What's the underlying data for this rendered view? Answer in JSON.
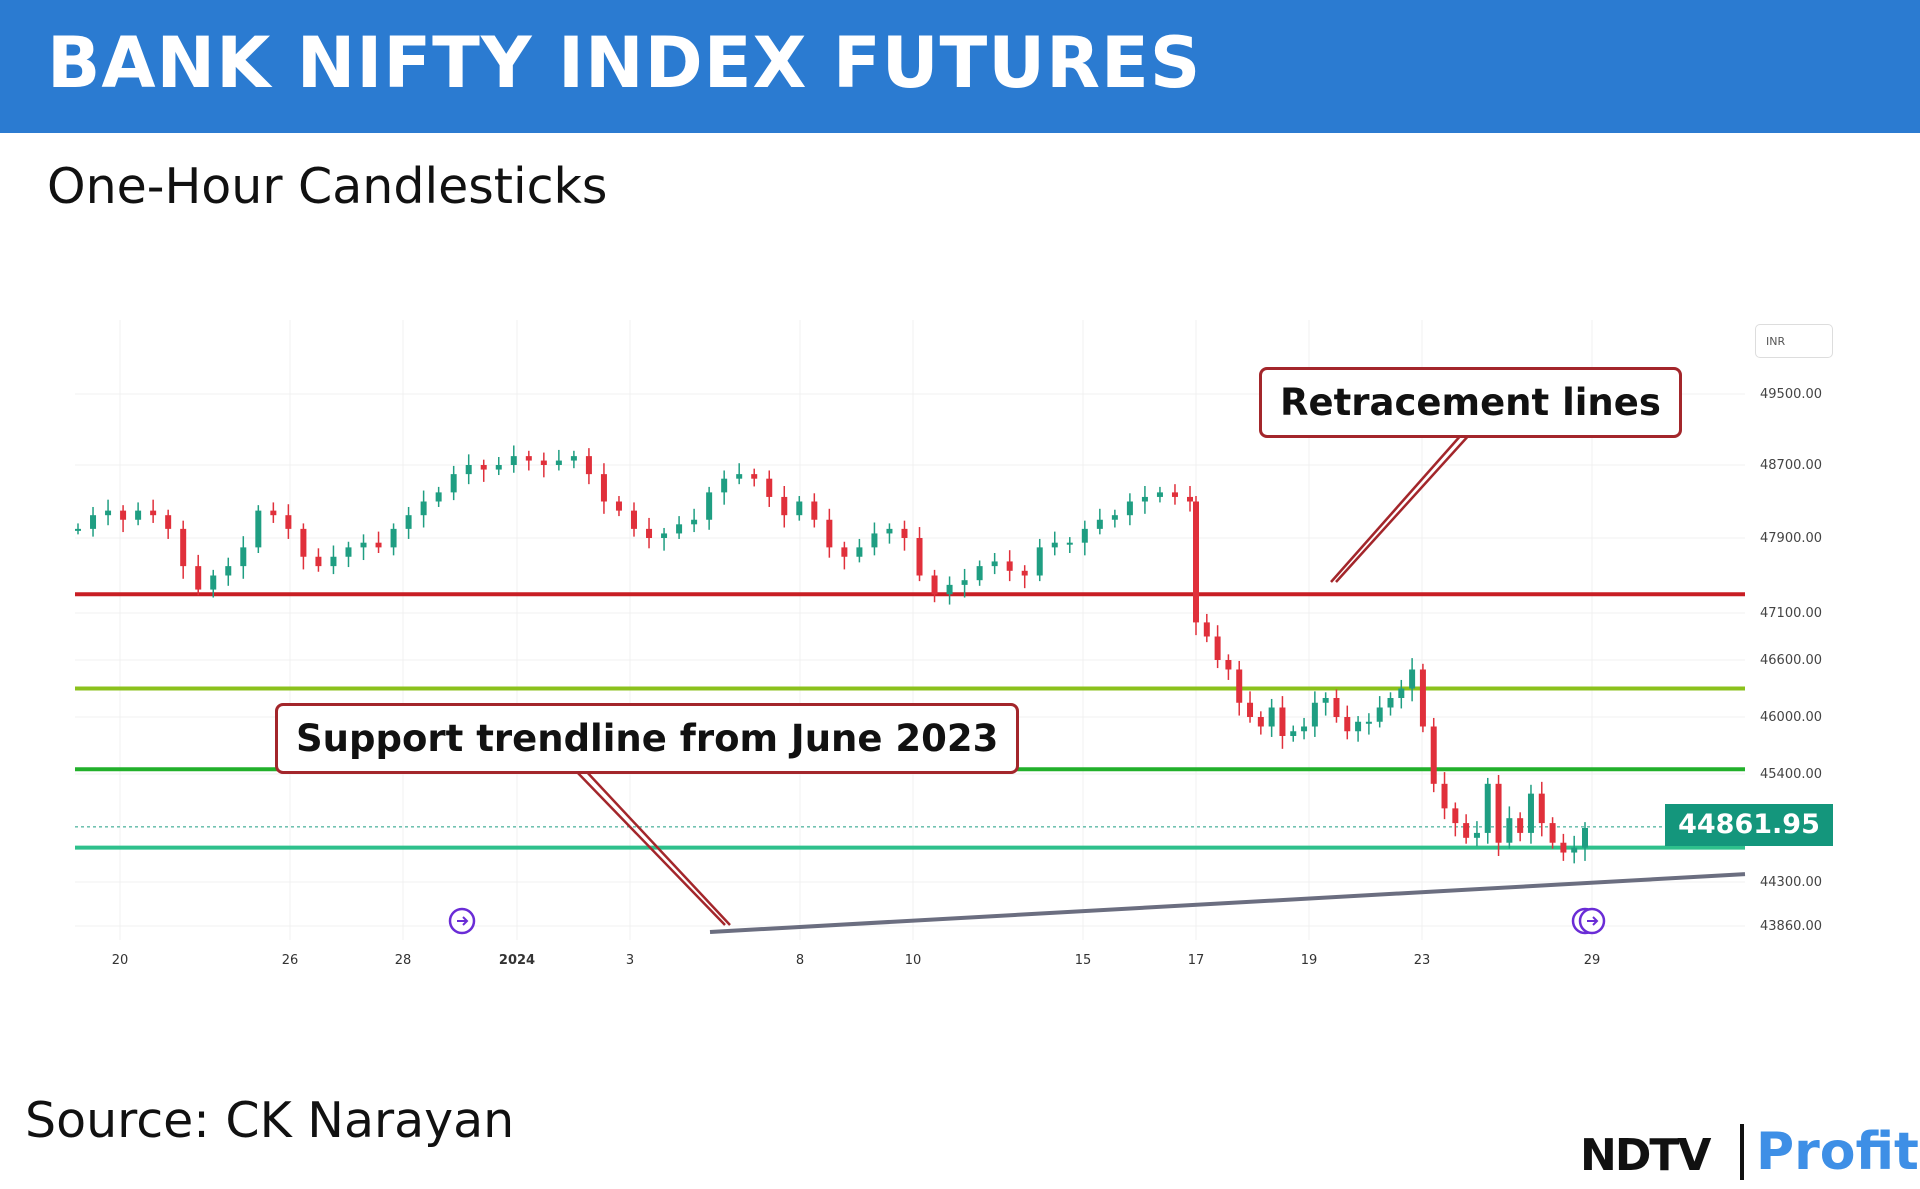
{
  "header": {
    "title": "BANK NIFTY INDEX FUTURES"
  },
  "subtitle": "One-Hour Candlesticks",
  "source": "Source: CK Narayan",
  "brand": {
    "ndtv": "NDTV",
    "profit": "Profit"
  },
  "currency_label": "INR",
  "callouts": {
    "retracement": "Retracement lines",
    "support": "Support trendline from June 2023"
  },
  "last_price": "44861.95",
  "colors": {
    "header_bg": "#2b7bd1",
    "bull": "#1f9e82",
    "bear": "#e0303b",
    "retracement_red": "#c81e24",
    "retracement_yellowgreen": "#8bc11c",
    "retracement_green": "#22b02b",
    "retracement_teal": "#2ec08c",
    "trendline": "#6b6e80",
    "callout_border": "#a3262b",
    "price_tag": "#14967c",
    "brand_profit": "#3e8fe6"
  },
  "chart_data": {
    "type": "candlestick",
    "title": "BANK NIFTY INDEX FUTURES",
    "subtitle": "One-Hour Candlesticks",
    "x_tick_labels": [
      "20",
      "26",
      "28",
      "2024",
      "3",
      "8",
      "10",
      "15",
      "17",
      "19",
      "23",
      "29"
    ],
    "y_tick_labels": [
      "49500.00",
      "48700.00",
      "47900.00",
      "47100.00",
      "46600.00",
      "46000.00",
      "45400.00",
      "44300.00",
      "43860.00"
    ],
    "ylim": [
      43700,
      49900
    ],
    "horizontal_lines": [
      {
        "name": "Retracement lines",
        "value": 47300,
        "color": "#c81e24"
      },
      {
        "name": "Retracement lines",
        "value": 46300,
        "color": "#8bc11c"
      },
      {
        "name": "Retracement lines",
        "value": 45450,
        "color": "#22b02b"
      },
      {
        "name": "Retracement lines",
        "value": 44650,
        "color": "#2ec08c"
      }
    ],
    "trendline": {
      "label": "Support trendline from June 2023",
      "from_value": 43800,
      "to_value": 44380
    },
    "last_price": 44861.95,
    "close_path": [
      48000,
      48150,
      48200,
      48100,
      48200,
      48150,
      48000,
      47600,
      47350,
      47500,
      47600,
      47800,
      48200,
      48150,
      48000,
      47700,
      47600,
      47700,
      47800,
      47850,
      47800,
      48000,
      48150,
      48300,
      48400,
      48600,
      48700,
      48650,
      48700,
      48800,
      48750,
      48700,
      48750,
      48800,
      48600,
      48300,
      48200,
      48000,
      47900,
      47950,
      48050,
      48100,
      48400,
      48550,
      48600,
      48550,
      48350,
      48150,
      48300,
      48100,
      47800,
      47700,
      47800,
      47950,
      48000,
      47900,
      47500,
      47300,
      47400,
      47450,
      47600,
      47650,
      47550,
      47500,
      47800,
      47850,
      47850,
      48000,
      48100,
      48150,
      48300,
      48350,
      48400,
      48350,
      48300,
      47000,
      46850,
      46600,
      46500,
      46150,
      46000,
      45900,
      46100,
      45800,
      45850,
      45900,
      46150,
      46200,
      46000,
      45850,
      45950,
      45950,
      46100,
      46200,
      46300,
      46500,
      45900,
      45300,
      45050,
      44900,
      44750,
      44800,
      45300,
      44700,
      44950,
      44800,
      45200,
      44900,
      44700,
      44600,
      44650,
      44850
    ]
  }
}
